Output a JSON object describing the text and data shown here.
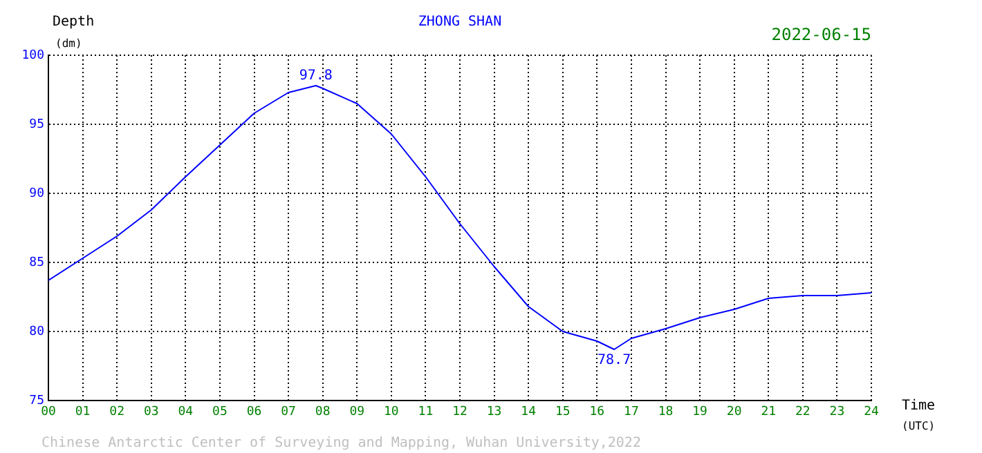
{
  "chart_data": {
    "type": "line",
    "title": "ZHONG SHAN",
    "subtitle": "2022-06-15",
    "xlabel": "Time\n(UTC)",
    "ylabel": "Depth\n(dm)",
    "x": [
      0,
      1,
      2,
      3,
      4,
      5,
      6,
      7,
      7.8,
      8,
      9,
      10,
      11,
      12,
      13,
      14,
      15,
      16,
      16.5,
      17,
      18,
      19,
      20,
      21,
      22,
      23,
      24
    ],
    "series": [
      {
        "color": "#0000ff",
        "values": [
          83.7,
          85.3,
          86.9,
          88.8,
          91.2,
          93.5,
          95.8,
          97.3,
          97.8,
          97.6,
          96.5,
          94.3,
          91.2,
          87.8,
          84.7,
          81.8,
          80.0,
          79.3,
          78.7,
          79.5,
          80.2,
          81.0,
          81.6,
          82.4,
          82.6,
          82.6,
          82.8
        ]
      }
    ],
    "xlim": [
      0,
      24
    ],
    "xticks": [
      {
        "value": 0,
        "label": "00"
      },
      {
        "value": 1,
        "label": "01"
      },
      {
        "value": 2,
        "label": "02"
      },
      {
        "value": 3,
        "label": "03"
      },
      {
        "value": 4,
        "label": "04"
      },
      {
        "value": 5,
        "label": "05"
      },
      {
        "value": 6,
        "label": "06"
      },
      {
        "value": 7,
        "label": "07"
      },
      {
        "value": 8,
        "label": "08"
      },
      {
        "value": 9,
        "label": "09"
      },
      {
        "value": 10,
        "label": "10"
      },
      {
        "value": 11,
        "label": "11"
      },
      {
        "value": 12,
        "label": "12"
      },
      {
        "value": 13,
        "label": "13"
      },
      {
        "value": 14,
        "label": "14"
      },
      {
        "value": 15,
        "label": "15"
      },
      {
        "value": 16,
        "label": "16"
      },
      {
        "value": 17,
        "label": "17"
      },
      {
        "value": 18,
        "label": "18"
      },
      {
        "value": 19,
        "label": "19"
      },
      {
        "value": 20,
        "label": "20"
      },
      {
        "value": 21,
        "label": "21"
      },
      {
        "value": 22,
        "label": "22"
      },
      {
        "value": 23,
        "label": "23"
      },
      {
        "value": 24,
        "label": "24"
      }
    ],
    "ylim": [
      75,
      100
    ],
    "yticks": [
      75,
      80,
      85,
      90,
      95,
      100
    ],
    "grid": true,
    "legend": false,
    "marker": "none",
    "line_style": "solid",
    "annotations": [
      {
        "text": "97.8",
        "x": 7.8,
        "y": 97.8
      },
      {
        "text": "78.7",
        "x": 16.5,
        "y": 78.7
      },
      "Chinese Antarctic Center of Surveying and Mapping, Wuhan University,2022"
    ]
  }
}
